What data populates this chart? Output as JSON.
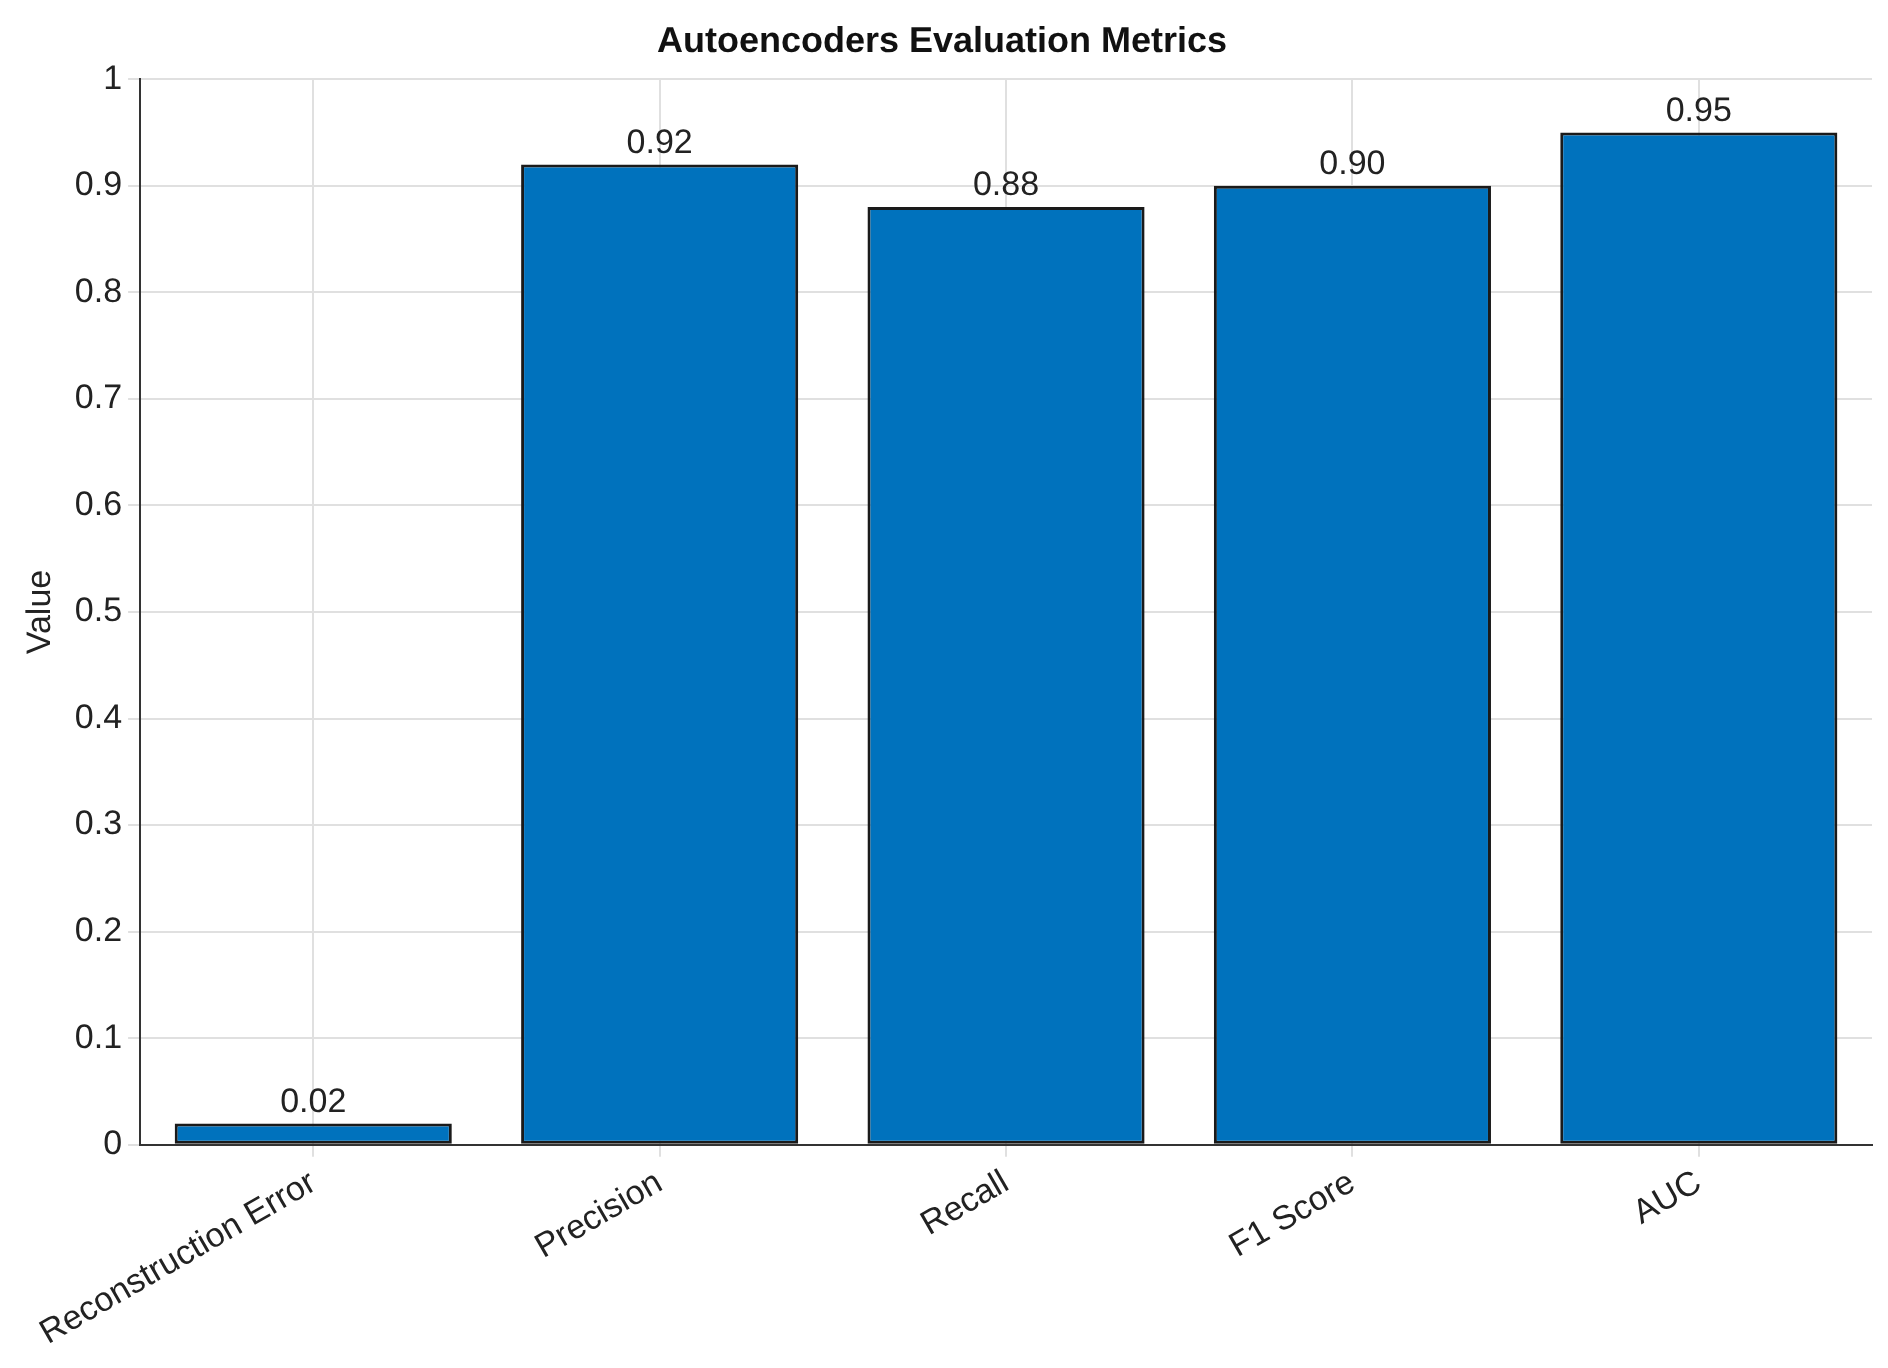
{
  "chart_data": {
    "type": "bar",
    "title": "Autoencoders Evaluation Metrics",
    "ylabel": "Value",
    "categories": [
      "Reconstruction Error",
      "Precision",
      "Recall",
      "F1 Score",
      "AUC"
    ],
    "values": [
      0.02,
      0.92,
      0.88,
      0.9,
      0.95
    ],
    "value_labels": [
      "0.02",
      "0.92",
      "0.88",
      "0.90",
      "0.95"
    ],
    "color": "#0072bd",
    "ylim": [
      0,
      1
    ],
    "yticks": [
      0,
      0.1,
      0.2,
      0.3,
      0.4,
      0.5,
      0.6,
      0.7,
      0.8,
      0.9,
      1
    ],
    "grid": true
  }
}
